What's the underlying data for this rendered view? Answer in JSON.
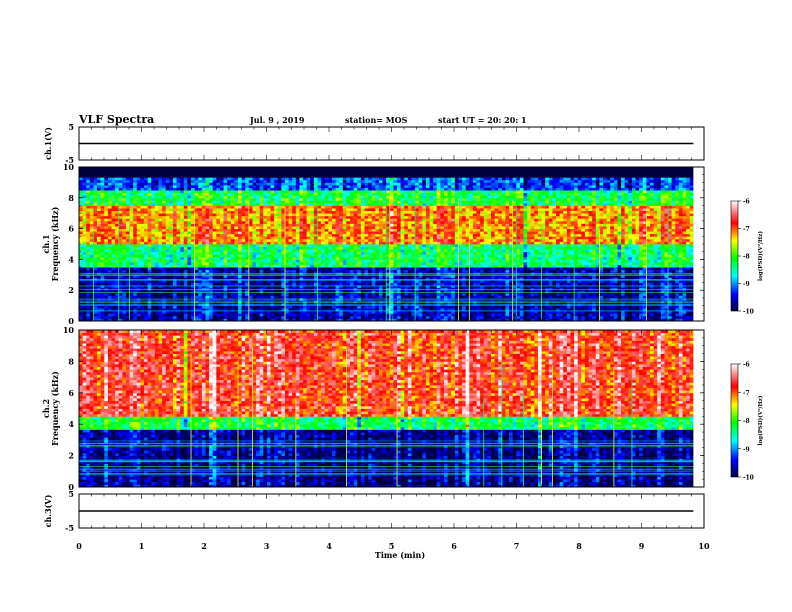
{
  "header": {
    "title": "VLF Spectra",
    "date": "Jul. 9 , 2019",
    "station": "station= MOS",
    "start": "start UT =  20: 20: 1"
  },
  "chart_data": [
    {
      "type": "line",
      "name": "ch1-voltage",
      "ylabel": "ch.1(V)",
      "ylim": [
        -5,
        5
      ],
      "yticks": [
        "5",
        "-5"
      ],
      "x": [
        0,
        9.83
      ],
      "values": [
        0,
        0
      ]
    },
    {
      "type": "heatmap",
      "name": "ch1-spectrogram",
      "ylabel_top": "ch.1",
      "ylabel": "Frequency (kHz)",
      "ylim": [
        0,
        10
      ],
      "yticks": [
        "0",
        "2",
        "4",
        "6",
        "8",
        "10"
      ],
      "xlim": [
        0,
        9.83
      ],
      "bands": [
        {
          "from": 9.3,
          "to": 10,
          "level": -10
        },
        {
          "from": 8.5,
          "to": 9.3,
          "level": -9.2
        },
        {
          "from": 7.5,
          "to": 8.5,
          "level": -8.2
        },
        {
          "from": 5.0,
          "to": 7.5,
          "level": -7.1
        },
        {
          "from": 3.5,
          "to": 5.0,
          "level": -8.3
        },
        {
          "from": 0,
          "to": 3.5,
          "level": -9.6
        }
      ],
      "colorbar": {
        "label": "log(PSD)(V²/Hz)",
        "ticks": [
          "-6",
          "-7",
          "-8",
          "-9",
          "-10"
        ],
        "range": [
          -10,
          -6
        ]
      }
    },
    {
      "type": "heatmap",
      "name": "ch2-spectrogram",
      "ylabel_top": "ch.2",
      "ylabel": "Frequency (kHz)",
      "ylim": [
        0,
        10
      ],
      "yticks": [
        "0",
        "2",
        "4",
        "6",
        "8",
        "10"
      ],
      "xlim": [
        0,
        9.83
      ],
      "bands": [
        {
          "from": 4.5,
          "to": 10,
          "level": -6.7
        },
        {
          "from": 3.6,
          "to": 4.5,
          "level": -8.2
        },
        {
          "from": 0,
          "to": 3.6,
          "level": -9.7
        }
      ],
      "colorbar": {
        "label": "log(PSD)(V²/Hz)",
        "ticks": [
          "-6",
          "-7",
          "-8",
          "-9",
          "-10"
        ],
        "range": [
          -10,
          -6
        ]
      }
    },
    {
      "type": "line",
      "name": "ch3-voltage",
      "ylabel": "ch.3(V)",
      "ylim": [
        -5,
        5
      ],
      "yticks": [
        "5",
        "-5"
      ],
      "x": [
        0,
        9.83
      ],
      "values": [
        0,
        0
      ]
    }
  ],
  "xaxis": {
    "label": "Time (min)",
    "xlim": [
      0,
      10
    ],
    "ticks": [
      "0",
      "1",
      "2",
      "3",
      "4",
      "5",
      "6",
      "7",
      "8",
      "9",
      "10"
    ]
  },
  "colors": {
    "frame": "#000000",
    "colormap": [
      "#000040",
      "#0000ff",
      "#00ffff",
      "#00ff00",
      "#ffff00",
      "#ff0000",
      "#ffffff"
    ]
  }
}
